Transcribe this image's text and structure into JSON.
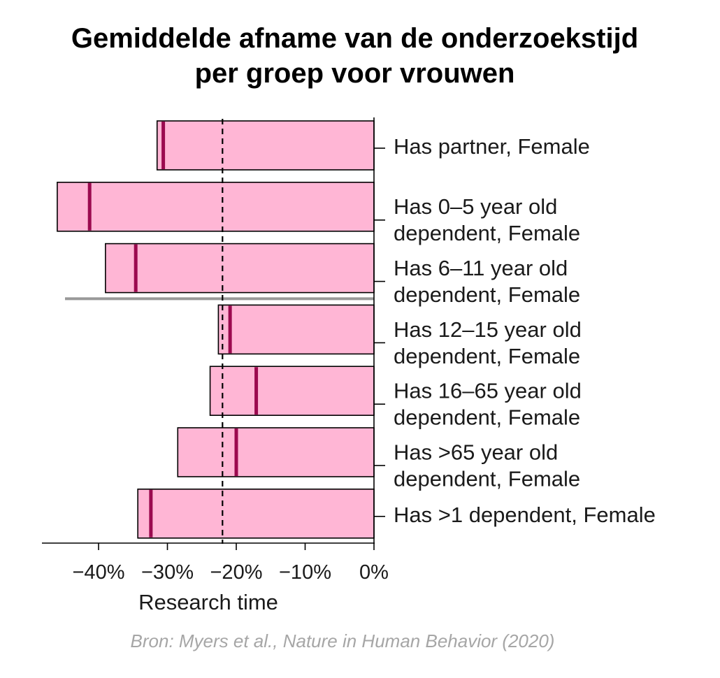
{
  "title": {
    "line1": "Gemiddelde afname van de onderzoekstijd",
    "line2": "per groep voor vrouwen"
  },
  "source": "Bron: Myers et al.,  Nature in Human Behavior (2020)",
  "colors": {
    "bar_fill": "#ffb6d5",
    "bar_stroke": "#000000",
    "mean_marker": "#9b0a4f",
    "reference_line": "#000000",
    "separator": "#999999"
  },
  "chart_data": {
    "type": "bar",
    "orientation": "horizontal",
    "xlabel": "Research time",
    "xlim": [
      -48,
      0
    ],
    "xticks": [
      -40,
      -30,
      -20,
      -10,
      0
    ],
    "xtick_labels": [
      "−40%",
      "−30%",
      "−20%",
      "−10%",
      "0%"
    ],
    "reference_line": {
      "x": -22,
      "style": "dashed"
    },
    "separator_after_index": 2,
    "categories": [
      {
        "line1": "Has partner, Female",
        "line2": ""
      },
      {
        "line1": "Has 0–5 year old",
        "line2": "dependent, Female"
      },
      {
        "line1": "Has 6–11 year old",
        "line2": "dependent, Female"
      },
      {
        "line1": "Has 12–15 year old",
        "line2": "dependent, Female"
      },
      {
        "line1": "Has 16–65 year old",
        "line2": "dependent, Female"
      },
      {
        "line1": "Has >65 year old",
        "line2": "dependent, Female"
      },
      {
        "line1": "Has >1 dependent, Female",
        "line2": ""
      }
    ],
    "values": [
      -31.5,
      -46,
      -39,
      -22.6,
      -23.8,
      -28.5,
      -34.3
    ],
    "markers": [
      -30.6,
      -41.3,
      -34.6,
      -20.9,
      -17.1,
      -20,
      -32.4
    ],
    "grid": false,
    "legend": "none"
  }
}
